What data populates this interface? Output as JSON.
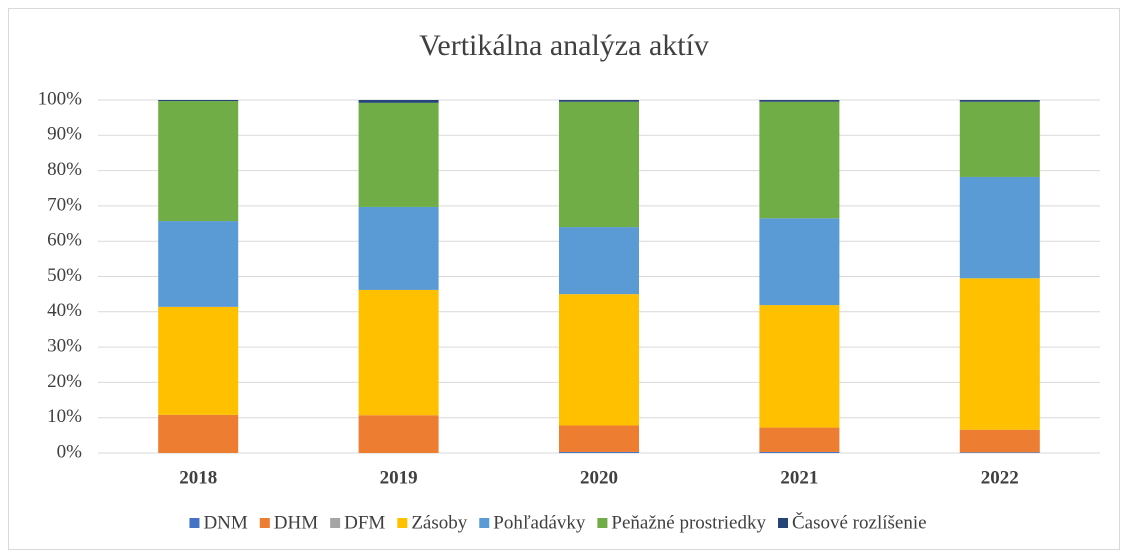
{
  "chart_data": {
    "type": "stacked_bar",
    "title": "Vertikálna analýza aktív",
    "categories": [
      "2018",
      "2019",
      "2020",
      "2021",
      "2022"
    ],
    "series": [
      {
        "name": "DNM",
        "color": "#4472c4",
        "values": [
          0,
          0,
          0.3,
          0.3,
          0.2
        ]
      },
      {
        "name": "DHM",
        "color": "#ed7d31",
        "values": [
          10.8,
          10.7,
          7.5,
          6.9,
          6.4
        ]
      },
      {
        "name": "DFM",
        "color": "#a5a5a5",
        "values": [
          0,
          0,
          0,
          0,
          0
        ]
      },
      {
        "name": "Zásoby",
        "color": "#ffc000",
        "values": [
          30.6,
          35.5,
          37.2,
          34.7,
          42.9
        ]
      },
      {
        "name": "Pohľadávky",
        "color": "#5b9bd5",
        "values": [
          24.3,
          23.5,
          19,
          24.6,
          28.7
        ]
      },
      {
        "name": "Peňažné prostriedky",
        "color": "#70ad47",
        "values": [
          34,
          29.5,
          35.5,
          33,
          21.3
        ]
      },
      {
        "name": "Časové rozlíšenie",
        "color": "#264478",
        "values": [
          0.3,
          0.8,
          0.5,
          0.5,
          0.5
        ]
      }
    ],
    "ylim": [
      0,
      100
    ],
    "yticks": [
      {
        "value": 0,
        "label": "0%"
      },
      {
        "value": 10,
        "label": "10%"
      },
      {
        "value": 20,
        "label": "20%"
      },
      {
        "value": 30,
        "label": "30%"
      },
      {
        "value": 40,
        "label": "40%"
      },
      {
        "value": 50,
        "label": "50%"
      },
      {
        "value": 60,
        "label": "60%"
      },
      {
        "value": 70,
        "label": "70%"
      },
      {
        "value": 80,
        "label": "80%"
      },
      {
        "value": 90,
        "label": "90%"
      },
      {
        "value": 100,
        "label": "100%"
      }
    ],
    "grid": true,
    "legend": "bottom"
  }
}
